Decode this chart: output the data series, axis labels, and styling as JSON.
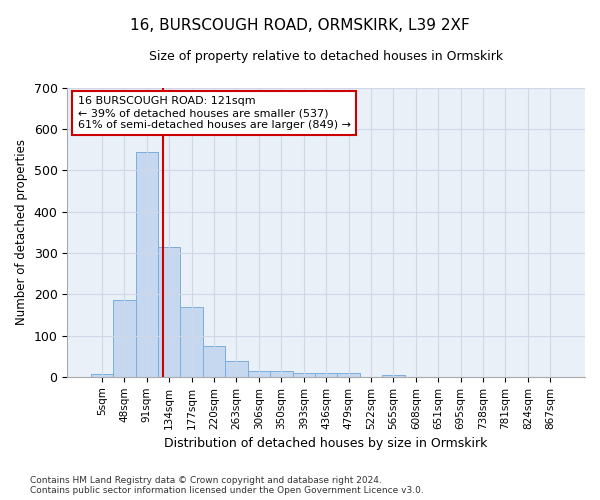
{
  "title": "16, BURSCOUGH ROAD, ORMSKIRK, L39 2XF",
  "subtitle": "Size of property relative to detached houses in Ormskirk",
  "xlabel": "Distribution of detached houses by size in Ormskirk",
  "ylabel": "Number of detached properties",
  "footnote": "Contains HM Land Registry data © Crown copyright and database right 2024.\nContains public sector information licensed under the Open Government Licence v3.0.",
  "bar_labels": [
    "5sqm",
    "48sqm",
    "91sqm",
    "134sqm",
    "177sqm",
    "220sqm",
    "263sqm",
    "306sqm",
    "350sqm",
    "393sqm",
    "436sqm",
    "479sqm",
    "522sqm",
    "565sqm",
    "608sqm",
    "651sqm",
    "695sqm",
    "738sqm",
    "781sqm",
    "824sqm",
    "867sqm"
  ],
  "bar_values": [
    8,
    187,
    545,
    315,
    168,
    75,
    38,
    15,
    15,
    10,
    10,
    10,
    0,
    5,
    0,
    0,
    0,
    0,
    0,
    0,
    0
  ],
  "bar_color": "#c5d8f0",
  "bar_edge_color": "#7aaedc",
  "grid_color": "#d0d8e8",
  "background_color": "#eaf0f8",
  "plot_background": "#eaf0f8",
  "fig_background": "#ffffff",
  "red_line_x": 2.72,
  "annotation_text": "16 BURSCOUGH ROAD: 121sqm\n← 39% of detached houses are smaller (537)\n61% of semi-detached houses are larger (849) →",
  "annotation_box_color": "#ffffff",
  "annotation_border_color": "#cc0000",
  "ylim": [
    0,
    700
  ],
  "yticks": [
    0,
    100,
    200,
    300,
    400,
    500,
    600,
    700
  ]
}
